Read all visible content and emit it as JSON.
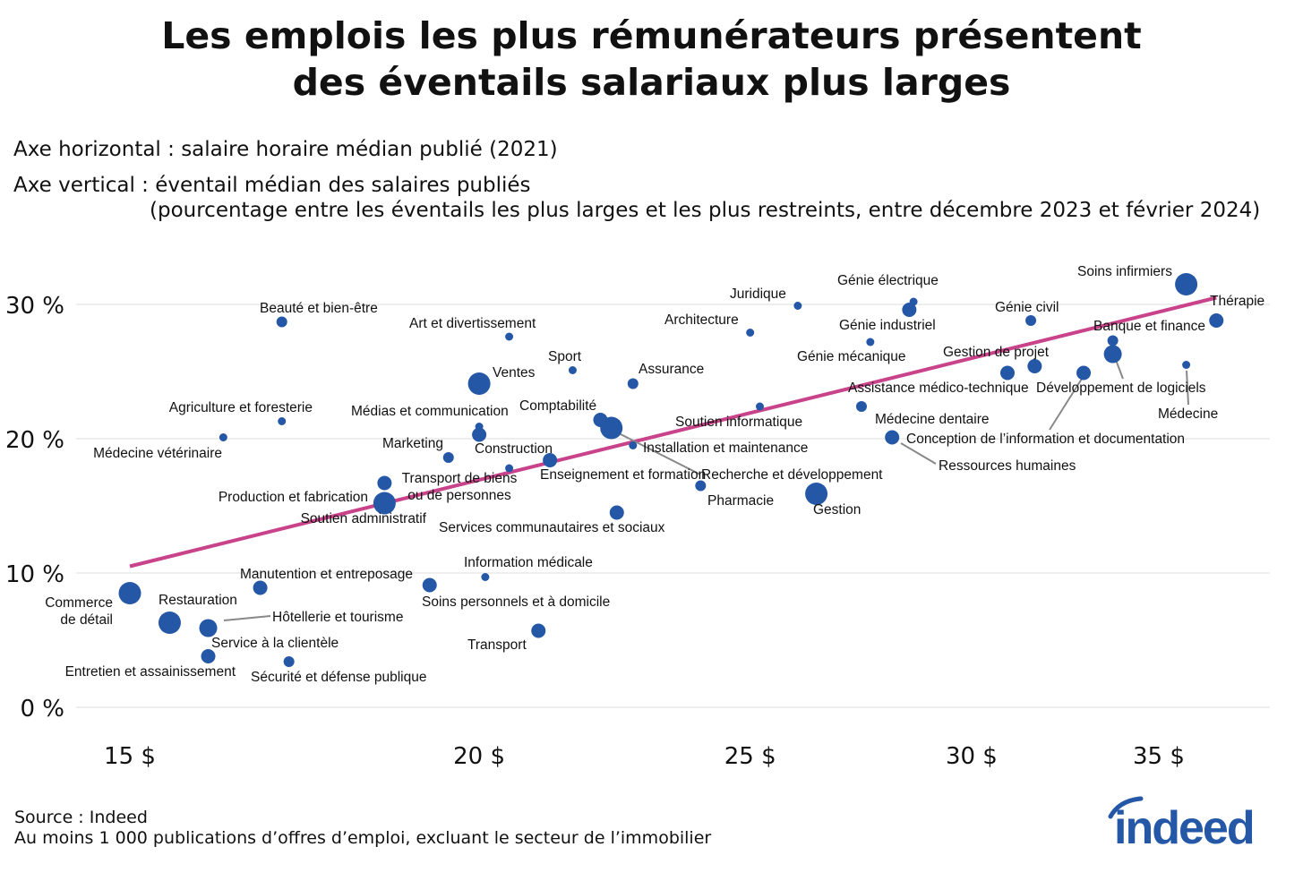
{
  "title_line1": "Les emplois les plus rémunérateurs présentent",
  "title_line2": "des éventails salariaux plus larges",
  "axis_desc_x": "Axe horizontal : salaire horaire médian publié (2021)",
  "axis_desc_y": "Axe vertical : éventail médian des salaires publiés",
  "axis_desc_y2": "(pourcentage entre les éventails les plus larges et les plus restreints, entre décembre 2023 et février 2024)",
  "source": "Source : Indeed",
  "note": "Au moins 1 000 publications d’offres d’emploi, excluant le secteur de l’immobilier",
  "logo_text": "indeed",
  "colors": {
    "points": "#2557a7",
    "trend": "#c9438a",
    "grid": "#dddddd",
    "logo": "#2557a7"
  },
  "chart_data": {
    "type": "scatter",
    "x_scale": "log",
    "xlim": [
      14.2,
      38
    ],
    "ylim": [
      0,
      32
    ],
    "grid": true,
    "x_ticks": [
      {
        "value": 15,
        "label": "15 $"
      },
      {
        "value": 20,
        "label": "20 $"
      },
      {
        "value": 25,
        "label": "25 $"
      },
      {
        "value": 30,
        "label": "30 $"
      },
      {
        "value": 35,
        "label": "35 $"
      }
    ],
    "y_ticks": [
      {
        "value": 0,
        "label": "0 %"
      },
      {
        "value": 10,
        "label": "10 %"
      },
      {
        "value": 20,
        "label": "20 %"
      },
      {
        "value": 30,
        "label": "30 %"
      }
    ],
    "trend_line": {
      "from": [
        15,
        10.5
      ],
      "to": [
        36.7,
        30.5
      ]
    },
    "points": [
      {
        "label": "Commerce\nde détail",
        "x": 15.0,
        "y": 8.5,
        "size": 5
      },
      {
        "label": "Restauration",
        "x": 15.5,
        "y": 6.3,
        "size": 5
      },
      {
        "label": "Hôtellerie et tourisme",
        "x": 16.0,
        "y": 5.9,
        "size": 4
      },
      {
        "label": "Service à la clientèle",
        "x": 16.0,
        "y": 5.8,
        "size": 2
      },
      {
        "label": "Entretien et assainissement",
        "x": 16.0,
        "y": 3.8,
        "size": 3
      },
      {
        "label": "Sécurité et défense publique",
        "x": 17.1,
        "y": 3.4,
        "size": 2
      },
      {
        "label": "Manutention et entreposage",
        "x": 16.7,
        "y": 8.9,
        "size": 3
      },
      {
        "label": "Médecine vétérinaire",
        "x": 16.2,
        "y": 20.1,
        "size": 1
      },
      {
        "label": "Agriculture et foresterie",
        "x": 17.0,
        "y": 21.3,
        "size": 1
      },
      {
        "label": "Beauté et bien-être",
        "x": 17.0,
        "y": 28.7,
        "size": 2
      },
      {
        "label": "Production et fabrication",
        "x": 18.5,
        "y": 16.7,
        "size": 3
      },
      {
        "label": "Soutien administratif",
        "x": 18.5,
        "y": 15.2,
        "size": 5
      },
      {
        "label": "Transport de biens\nou de personnes",
        "x": 20.5,
        "y": 17.8,
        "size": 1
      },
      {
        "label": "Marketing",
        "x": 19.5,
        "y": 18.6,
        "size": 2
      },
      {
        "label": "Médias et communication",
        "x": 20.0,
        "y": 20.9,
        "size": 1
      },
      {
        "label": "Construction",
        "x": 20.0,
        "y": 20.3,
        "size": 3
      },
      {
        "label": "Ventes",
        "x": 20.0,
        "y": 24.1,
        "size": 5
      },
      {
        "label": "Art et divertissement",
        "x": 20.5,
        "y": 27.6,
        "size": 1
      },
      {
        "label": "Enseignement et formation",
        "x": 21.2,
        "y": 18.4,
        "size": 3
      },
      {
        "label": "Sport",
        "x": 21.6,
        "y": 25.1,
        "size": 1
      },
      {
        "label": "Comptabilité",
        "x": 22.1,
        "y": 21.4,
        "size": 3
      },
      {
        "label": "Recherche et développement",
        "x": 22.3,
        "y": 20.8,
        "size": 5
      },
      {
        "label": "Installation et maintenance",
        "x": 22.7,
        "y": 19.5,
        "size": 1
      },
      {
        "label": "Assurance",
        "x": 22.7,
        "y": 24.1,
        "size": 2
      },
      {
        "label": "Services communautaires et sociaux",
        "x": 22.4,
        "y": 14.5,
        "size": 3
      },
      {
        "label": "Information médicale",
        "x": 20.1,
        "y": 9.7,
        "size": 1
      },
      {
        "label": "Soins personnels et à domicile",
        "x": 19.2,
        "y": 9.1,
        "size": 3
      },
      {
        "label": "Transport",
        "x": 21.0,
        "y": 5.7,
        "size": 3
      },
      {
        "label": "Pharmacie",
        "x": 24.0,
        "y": 16.5,
        "size": 2
      },
      {
        "label": "Architecture",
        "x": 25.0,
        "y": 27.9,
        "size": 1
      },
      {
        "label": "Soutien informatique",
        "x": 25.2,
        "y": 22.4,
        "size": 1
      },
      {
        "label": "Juridique",
        "x": 26.0,
        "y": 29.9,
        "size": 1
      },
      {
        "label": "Gestion",
        "x": 26.4,
        "y": 15.9,
        "size": 5
      },
      {
        "label": "Génie électrique",
        "x": 28.6,
        "y": 30.2,
        "size": 1
      },
      {
        "label": "Génie industriel",
        "x": 28.5,
        "y": 29.6,
        "size": 3
      },
      {
        "label": "Génie mécanique",
        "x": 27.6,
        "y": 27.2,
        "size": 1
      },
      {
        "label": "Médecine dentaire",
        "x": 27.4,
        "y": 22.4,
        "size": 2
      },
      {
        "label": "Ressources humaines",
        "x": 28.1,
        "y": 20.1,
        "size": 3
      },
      {
        "label": "Assistance médico-technique",
        "x": 30.9,
        "y": 24.9,
        "size": 3
      },
      {
        "label": "Gestion de projet",
        "x": 31.6,
        "y": 25.4,
        "size": 3
      },
      {
        "label": "Génie civil",
        "x": 31.5,
        "y": 28.8,
        "size": 2
      },
      {
        "label": "Conception de l’information et documentation",
        "x": 32.9,
        "y": 24.9,
        "size": 3
      },
      {
        "label": "Banque et finance",
        "x": 33.7,
        "y": 27.3,
        "size": 2
      },
      {
        "label": "Développement de logiciels",
        "x": 33.7,
        "y": 26.3,
        "size": 4
      },
      {
        "label": "Médecine",
        "x": 35.8,
        "y": 25.5,
        "size": 1
      },
      {
        "label": "Soins infirmiers",
        "x": 35.8,
        "y": 31.5,
        "size": 5
      },
      {
        "label": "Thérapie",
        "x": 36.7,
        "y": 28.8,
        "size": 3
      }
    ]
  }
}
